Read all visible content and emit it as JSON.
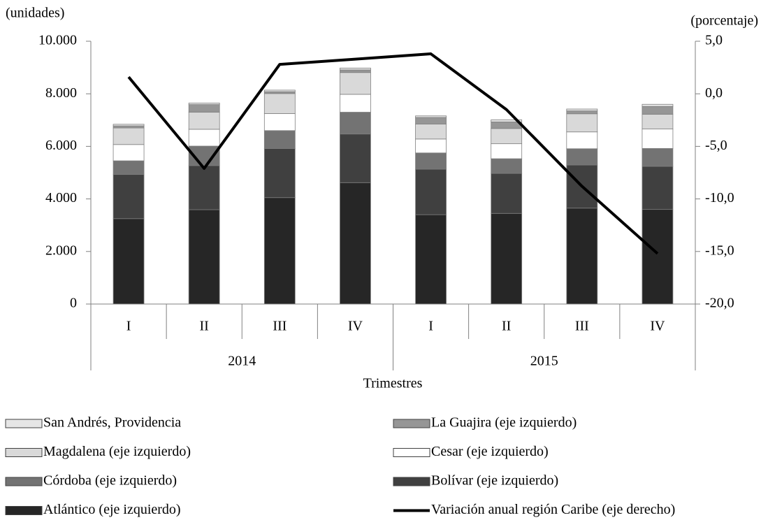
{
  "chart_data": {
    "type": "bar",
    "stacked": true,
    "y_label": "(unidades)",
    "y2_label": "(porcentaje)",
    "x_label": "Trimestres",
    "categories": [
      "I",
      "II",
      "III",
      "IV",
      "I",
      "II",
      "III",
      "IV"
    ],
    "x_groups": [
      "2014",
      "2015"
    ],
    "ylim": [
      0,
      10000
    ],
    "yticks": [
      {
        "value": 0,
        "label": "0"
      },
      {
        "value": 2000,
        "label": "2.000"
      },
      {
        "value": 4000,
        "label": "4.000"
      },
      {
        "value": 6000,
        "label": "6.000"
      },
      {
        "value": 8000,
        "label": "8.000"
      },
      {
        "value": 10000,
        "label": "10.000"
      }
    ],
    "y2lim": [
      -20,
      5
    ],
    "y2ticks": [
      {
        "value": -20,
        "label": "-20,0"
      },
      {
        "value": -15,
        "label": "-15,0"
      },
      {
        "value": -10,
        "label": "-10,0"
      },
      {
        "value": -5,
        "label": "-5,0"
      },
      {
        "value": 0,
        "label": "0,0"
      },
      {
        "value": 5,
        "label": "5,0"
      }
    ],
    "series": [
      {
        "name": "San Andrés, Providencia",
        "color": "#e6e6e6",
        "values": [
          60,
          60,
          60,
          70,
          60,
          80,
          70,
          80
        ]
      },
      {
        "name": "La Guajira (eje izquierdo)",
        "color": "#969696",
        "values": [
          80,
          290,
          70,
          100,
          250,
          250,
          110,
          300
        ]
      },
      {
        "name": "Magdalena (eje izquierdo)",
        "color": "#d9d9d9",
        "values": [
          630,
          650,
          760,
          830,
          570,
          580,
          690,
          560
        ]
      },
      {
        "name": "Cesar (eje izquierdo)",
        "color": "#ffffff",
        "values": [
          620,
          640,
          650,
          680,
          530,
          570,
          640,
          740
        ]
      },
      {
        "name": "Córdoba (eje izquierdo)",
        "color": "#737373",
        "values": [
          520,
          740,
          680,
          830,
          620,
          560,
          620,
          680
        ]
      },
      {
        "name": "Bolívar (eje izquierdo)",
        "color": "#404040",
        "values": [
          1680,
          1680,
          1870,
          1850,
          1730,
          1520,
          1640,
          1640
        ]
      },
      {
        "name": "Atlántico (eje izquierdo)",
        "color": "#262626",
        "values": [
          3250,
          3590,
          4050,
          4620,
          3400,
          3450,
          3650,
          3600
        ]
      },
      {
        "name": "Variación anual región Caribe (eje derecho)",
        "color": "#000000",
        "type": "line",
        "axis": "y2",
        "values": [
          1.6,
          -7.1,
          2.8,
          3.3,
          3.8,
          -1.5,
          -8.8,
          -15.2
        ]
      }
    ]
  }
}
